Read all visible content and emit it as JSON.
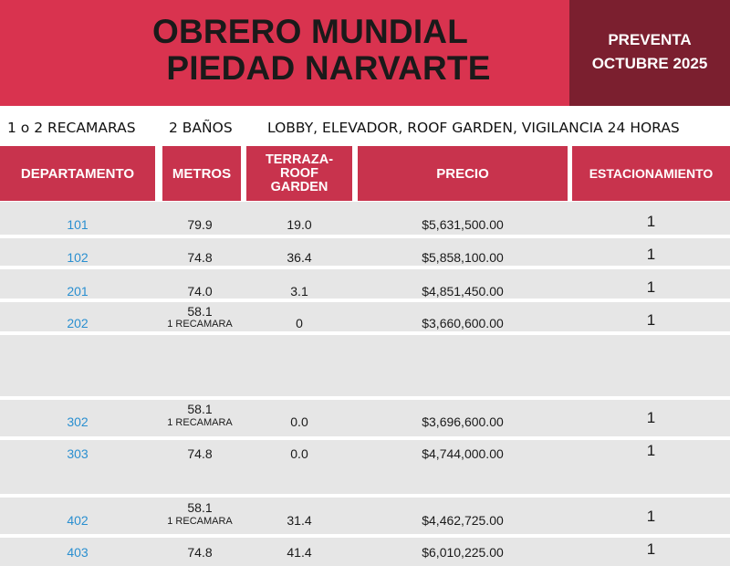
{
  "banner": {
    "title_line1": "OBRERO MUNDIAL",
    "title_line2": "PIEDAD NARVARTE",
    "presale_line1": "PREVENTA",
    "presale_line2": "OCTUBRE 2025",
    "colors": {
      "banner": "#d9334f",
      "side": "#7b1f2f",
      "header": "#c8334d",
      "unit_text": "#2a8fd0"
    }
  },
  "features": {
    "bedrooms": "1 o 2 RECAMARAS",
    "bathrooms": "2 BAÑOS",
    "amenities": "LOBBY, ELEVADOR, ROOF GARDEN, VIGILANCIA 24 HORAS"
  },
  "table": {
    "headers": {
      "unit": "DEPARTAMENTO",
      "meters": "METROS",
      "terrace_1": "TERRAZA-",
      "terrace_2": "ROOF",
      "terrace_3": "GARDEN",
      "price": "PRECIO",
      "parking": "ESTACIONAMIENTO"
    },
    "rows": [
      {
        "unit": "101",
        "meters": "79.9",
        "note": "",
        "terrace": "19.0",
        "price": "$5,631,500.00",
        "parking": "1"
      },
      {
        "unit": "102",
        "meters": "74.8",
        "note": "",
        "terrace": "36.4",
        "price": "$5,858,100.00",
        "parking": "1"
      },
      {
        "unit": "201",
        "meters": "74.0",
        "note": "",
        "terrace": "3.1",
        "price": "$4,851,450.00",
        "parking": "1"
      },
      {
        "unit": "202",
        "meters": "58.1",
        "note": "1 RECAMARA",
        "terrace": "0",
        "price": "$3,660,600.00",
        "parking": "1"
      },
      {
        "unit": "302",
        "meters": "58.1",
        "note": "1 RECAMARA",
        "terrace": "0.0",
        "price": "$3,696,600.00",
        "parking": "1"
      },
      {
        "unit": "303",
        "meters": "74.8",
        "note": "",
        "terrace": "0.0",
        "price": "$4,744,000.00",
        "parking": "1"
      },
      {
        "unit": "402",
        "meters": "58.1",
        "note": "1 RECAMARA",
        "terrace": "31.4",
        "price": "$4,462,725.00",
        "parking": "1"
      },
      {
        "unit": "403",
        "meters": "74.8",
        "note": "",
        "terrace": "41.4",
        "price": "$6,010,225.00",
        "parking": "1"
      }
    ]
  }
}
